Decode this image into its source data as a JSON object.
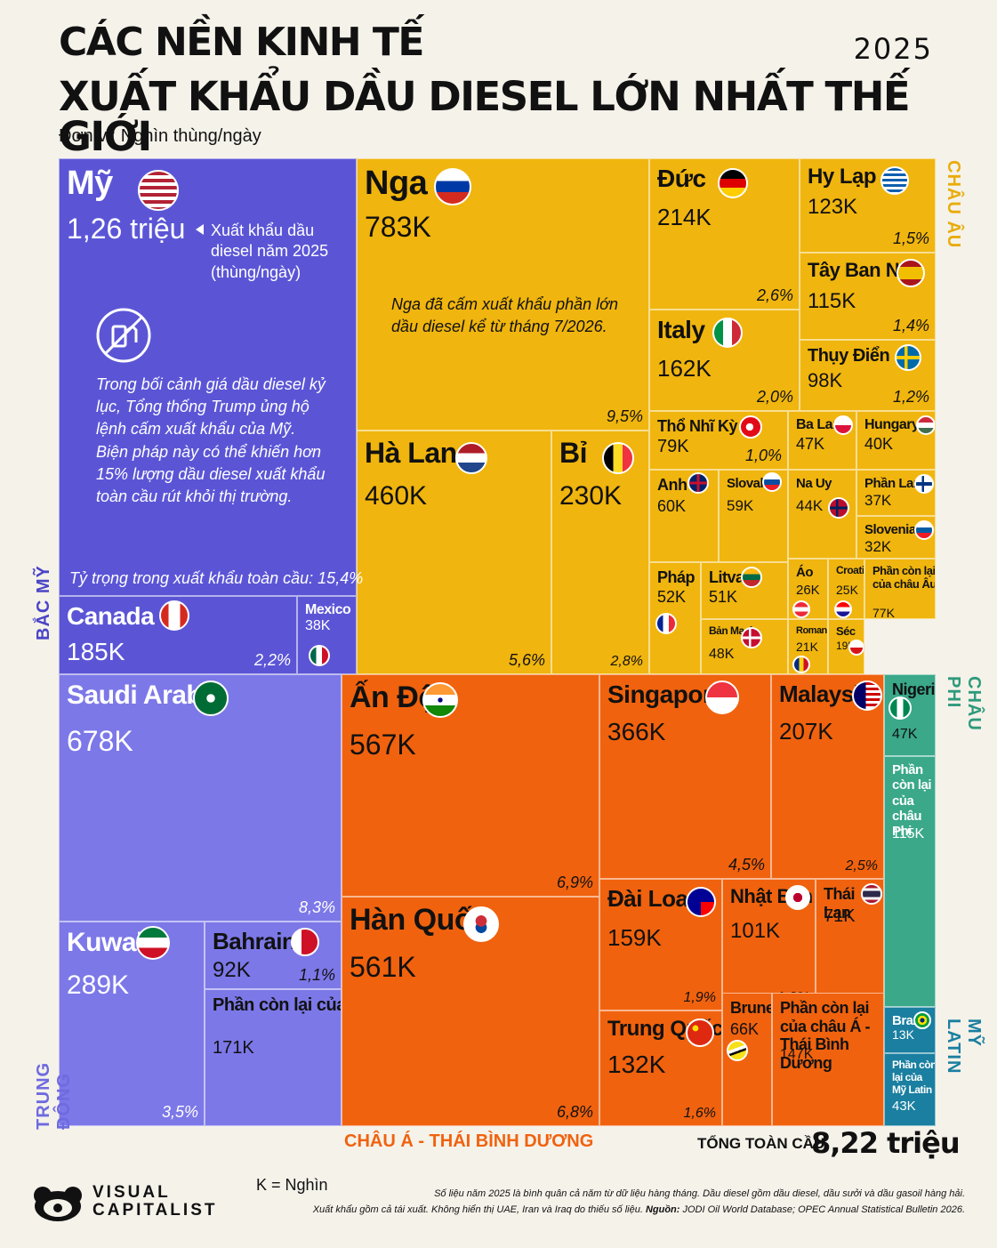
{
  "header": {
    "title_line1": "CÁC NỀN KINH TẾ",
    "title_line2": "XUẤT KHẨU DẦU DIESEL LỚN NHẤT THẾ GIỚI",
    "year": "2025",
    "unit": "Đơn vị: Nghìn thùng/ngày"
  },
  "colors": {
    "north_america": "#5b55d6",
    "europe": "#f0b50e",
    "middle_east": "#7c78e8",
    "asia_pacific": "#f0620e",
    "africa": "#3aa889",
    "latin_america": "#1a7fa0"
  },
  "regions": {
    "north_america": "BẮC MỸ",
    "europe": "CHÂU ÂU",
    "middle_east": "TRUNG ĐÔNG",
    "asia_pacific": "CHÂU Á - THÁI BÌNH DƯƠNG",
    "africa": "CHÂU PHI",
    "latin_america": "MỸ LATIN"
  },
  "annotations": {
    "usa_callout": "Xuất khẩu dầu diesel năm 2025 (thùng/ngày)",
    "usa_note": "Trong bối cảnh giá dầu diesel kỷ lục, Tổng thống Trump ủng hộ lệnh cấm xuất khẩu của Mỹ. Biện pháp này có thể khiến hơn 15% lượng dầu diesel xuất khẩu toàn cầu rút khỏi thị trường.",
    "usa_share": "Tỷ trọng trong xuất khẩu toàn cầu: 15,4%",
    "russia_note": "Nga đã cấm xuất khẩu phần lớn dầu diesel kể từ tháng 7/2026.",
    "icon": "no-fuel-pump-icon"
  },
  "chart_data": {
    "type": "treemap",
    "unit": "Nghìn thùng/ngày",
    "nodes": [
      {
        "name": "Mỹ",
        "value": 1260,
        "label": "1,26 triệu",
        "region": "north_america",
        "flag": "us-flag-icon"
      },
      {
        "name": "Canada",
        "value": 185,
        "label": "185K",
        "share": "2,2%",
        "region": "north_america",
        "flag": "canada-flag-icon"
      },
      {
        "name": "Mexico",
        "value": 38,
        "label": "38K",
        "region": "north_america",
        "flag": "mexico-flag-icon"
      },
      {
        "name": "Nga",
        "value": 783,
        "label": "783K",
        "share": "9,5%",
        "region": "europe",
        "flag": "russia-flag-icon"
      },
      {
        "name": "Hà Lan",
        "value": 460,
        "label": "460K",
        "share": "5,6%",
        "region": "europe",
        "flag": "netherlands-flag-icon"
      },
      {
        "name": "Bỉ",
        "value": 230,
        "label": "230K",
        "share": "2,8%",
        "region": "europe",
        "flag": "belgium-flag-icon"
      },
      {
        "name": "Đức",
        "value": 214,
        "label": "214K",
        "share": "2,6%",
        "region": "europe",
        "flag": "germany-flag-icon"
      },
      {
        "name": "Hy Lạp",
        "value": 123,
        "label": "123K",
        "share": "1,5%",
        "region": "europe",
        "flag": "greece-flag-icon"
      },
      {
        "name": "Tây Ban Nha",
        "value": 115,
        "label": "115K",
        "share": "1,4%",
        "region": "europe",
        "flag": "spain-flag-icon"
      },
      {
        "name": "Italy",
        "value": 162,
        "label": "162K",
        "share": "2,0%",
        "region": "europe",
        "flag": "italy-flag-icon"
      },
      {
        "name": "Thụy Điển",
        "value": 98,
        "label": "98K",
        "share": "1,2%",
        "region": "europe",
        "flag": "sweden-flag-icon"
      },
      {
        "name": "Thổ Nhĩ Kỳ",
        "value": 79,
        "label": "79K",
        "share": "1,0%",
        "region": "europe",
        "flag": "turkey-flag-icon"
      },
      {
        "name": "Ba Lan",
        "value": 47,
        "label": "47K",
        "region": "europe",
        "flag": "poland-flag-icon"
      },
      {
        "name": "Hungary",
        "value": 40,
        "label": "40K",
        "region": "europe",
        "flag": "hungary-flag-icon"
      },
      {
        "name": "Anh",
        "value": 60,
        "label": "60K",
        "region": "europe",
        "flag": "uk-flag-icon"
      },
      {
        "name": "Slovakia",
        "value": 59,
        "label": "59K",
        "region": "europe",
        "flag": "slovakia-flag-icon"
      },
      {
        "name": "Na Uy",
        "value": 44,
        "label": "44K",
        "region": "europe",
        "flag": "norway-flag-icon"
      },
      {
        "name": "Phần Lan",
        "value": 37,
        "label": "37K",
        "region": "europe",
        "flag": "finland-flag-icon"
      },
      {
        "name": "Slovenia",
        "value": 32,
        "label": "32K",
        "region": "europe",
        "flag": "slovenia-flag-icon"
      },
      {
        "name": "Pháp",
        "value": 52,
        "label": "52K",
        "region": "europe",
        "flag": "france-flag-icon"
      },
      {
        "name": "Litva",
        "value": 51,
        "label": "51K",
        "region": "europe",
        "flag": "lithuania-flag-icon"
      },
      {
        "name": "Áo",
        "value": 26,
        "label": "26K",
        "region": "europe",
        "flag": "austria-flag-icon"
      },
      {
        "name": "Croatia",
        "value": 25,
        "label": "25K",
        "region": "europe",
        "flag": "croatia-flag-icon"
      },
      {
        "name": "Phần còn lại của châu Âu",
        "value": 77,
        "label": "77K",
        "region": "europe"
      },
      {
        "name": "Bản Mạch",
        "value": 48,
        "label": "48K",
        "region": "europe",
        "flag": "denmark-flag-icon"
      },
      {
        "name": "Romania",
        "value": 21,
        "label": "21K",
        "region": "europe",
        "flag": "romania-flag-icon"
      },
      {
        "name": "Séc",
        "value": 19,
        "label": "19K",
        "region": "europe",
        "flag": "czech-flag-icon"
      },
      {
        "name": "Saudi Arabia",
        "value": 678,
        "label": "678K",
        "share": "8,3%",
        "region": "middle_east",
        "flag": "saudi-flag-icon"
      },
      {
        "name": "Kuwait",
        "value": 289,
        "label": "289K",
        "share": "3,5%",
        "region": "middle_east",
        "flag": "kuwait-flag-icon"
      },
      {
        "name": "Bahrain",
        "value": 92,
        "label": "92K",
        "share": "1,1%",
        "region": "middle_east",
        "flag": "bahrain-flag-icon"
      },
      {
        "name": "Phần còn lại của Trung Đông",
        "value": 171,
        "label": "171K",
        "region": "middle_east"
      },
      {
        "name": "Ấn Độ",
        "value": 567,
        "label": "567K",
        "share": "6,9%",
        "region": "asia_pacific",
        "flag": "india-flag-icon"
      },
      {
        "name": "Hàn Quốc",
        "value": 561,
        "label": "561K",
        "share": "6,8%",
        "region": "asia_pacific",
        "flag": "south-korea-flag-icon"
      },
      {
        "name": "Singapore",
        "value": 366,
        "label": "366K",
        "share": "4,5%",
        "region": "asia_pacific",
        "flag": "singapore-flag-icon"
      },
      {
        "name": "Malaysia",
        "value": 207,
        "label": "207K",
        "share": "2,5%",
        "region": "asia_pacific",
        "flag": "malaysia-flag-icon"
      },
      {
        "name": "Đài Loan",
        "value": 159,
        "label": "159K",
        "share": "1,9%",
        "region": "asia_pacific",
        "flag": "taiwan-flag-icon"
      },
      {
        "name": "Nhật Bản",
        "value": 101,
        "label": "101K",
        "share": "1,2%",
        "region": "asia_pacific",
        "flag": "japan-flag-icon"
      },
      {
        "name": "Thái Lan",
        "value": 71,
        "label": "71K",
        "region": "asia_pacific",
        "flag": "thailand-flag-icon"
      },
      {
        "name": "Trung Quốc",
        "value": 132,
        "label": "132K",
        "share": "1,6%",
        "region": "asia_pacific",
        "flag": "china-flag-icon"
      },
      {
        "name": "Brunei",
        "value": 66,
        "label": "66K",
        "region": "asia_pacific",
        "flag": "brunei-flag-icon"
      },
      {
        "name": "Phần còn lại của châu Á - Thái Bình Dương",
        "value": 147,
        "label": "147K",
        "region": "asia_pacific"
      },
      {
        "name": "Nigeria",
        "value": 47,
        "label": "47K",
        "region": "africa",
        "flag": "nigeria-flag-icon"
      },
      {
        "name": "Phần còn lại của châu Phi",
        "value": 115,
        "label": "115K",
        "region": "africa"
      },
      {
        "name": "Brazil",
        "value": 13,
        "label": "13K",
        "region": "latin_america",
        "flag": "brazil-flag-icon"
      },
      {
        "name": "Phần còn lại của Mỹ Latin",
        "value": 43,
        "label": "43K",
        "region": "latin_america"
      }
    ]
  },
  "total": {
    "label": "TỔNG TOÀN CẦU",
    "value": "8,22 triệu"
  },
  "footer": {
    "brand_line1": "VISUAL",
    "brand_line2": "CAPITALIST",
    "k_note": "K = Nghìn",
    "source_line1": "Số liệu năm 2025 là bình quân cả năm từ dữ liệu hàng tháng. Dầu diesel gồm dầu diesel, dầu sưởi và dầu gasoil hàng hải.",
    "source_line2_prefix": "Xuất khẩu gồm cả tái xuất. Không hiển thị UAE, Iran và Iraq do thiếu số liệu.",
    "source_bold": "Nguồn:",
    "source_rest": "JODI Oil World Database; OPEC Annual Statistical Bulletin 2026."
  }
}
